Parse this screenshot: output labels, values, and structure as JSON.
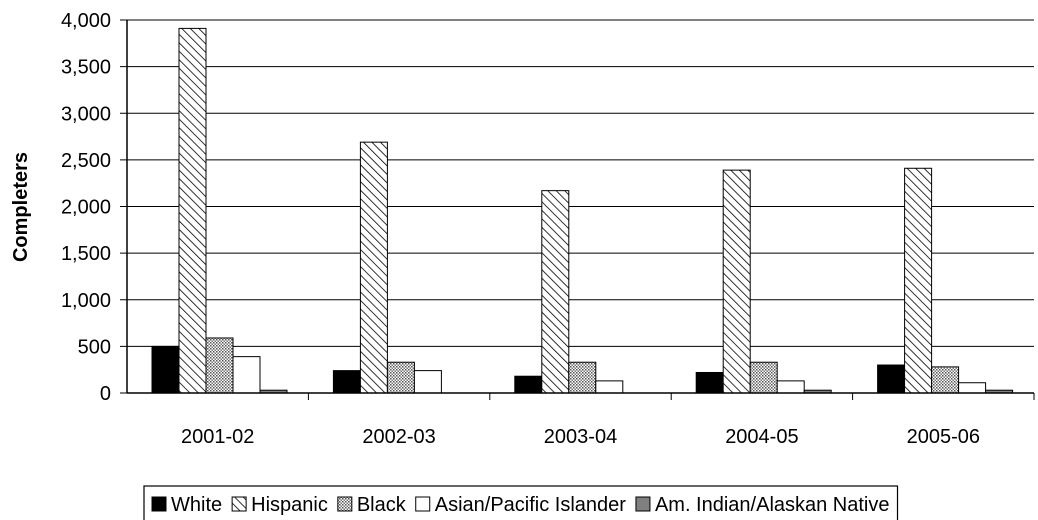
{
  "chart_data": {
    "type": "bar",
    "title": "",
    "xlabel": "",
    "ylabel": "Completers",
    "ylim": [
      0,
      4000
    ],
    "yticks": [
      "0",
      "500",
      "1,000",
      "1,500",
      "2,000",
      "2,500",
      "3,000",
      "3,500",
      "4,000"
    ],
    "ytick_values": [
      0,
      500,
      1000,
      1500,
      2000,
      2500,
      3000,
      3500,
      4000
    ],
    "grid": true,
    "legend_position": "bottom",
    "categories": [
      "2001-02",
      "2002-03",
      "2003-04",
      "2004-05",
      "2005-06"
    ],
    "series": [
      {
        "name": "White",
        "pattern": "solid-black",
        "color": "#000000",
        "values": [
          500,
          240,
          180,
          220,
          300
        ]
      },
      {
        "name": "Hispanic",
        "pattern": "diagonal-hatch",
        "color": "#000000",
        "values": [
          3910,
          2690,
          2170,
          2390,
          2410
        ]
      },
      {
        "name": "Black",
        "pattern": "dotted",
        "color": "#c8c8c8",
        "values": [
          590,
          330,
          330,
          330,
          280
        ]
      },
      {
        "name": "Asian/Pacific Islander",
        "pattern": "white",
        "color": "#ffffff",
        "values": [
          390,
          240,
          130,
          130,
          110
        ]
      },
      {
        "name": "Am. Indian/Alaskan Native",
        "pattern": "gray",
        "color": "#808080",
        "values": [
          30,
          0,
          0,
          30,
          30
        ]
      }
    ]
  }
}
